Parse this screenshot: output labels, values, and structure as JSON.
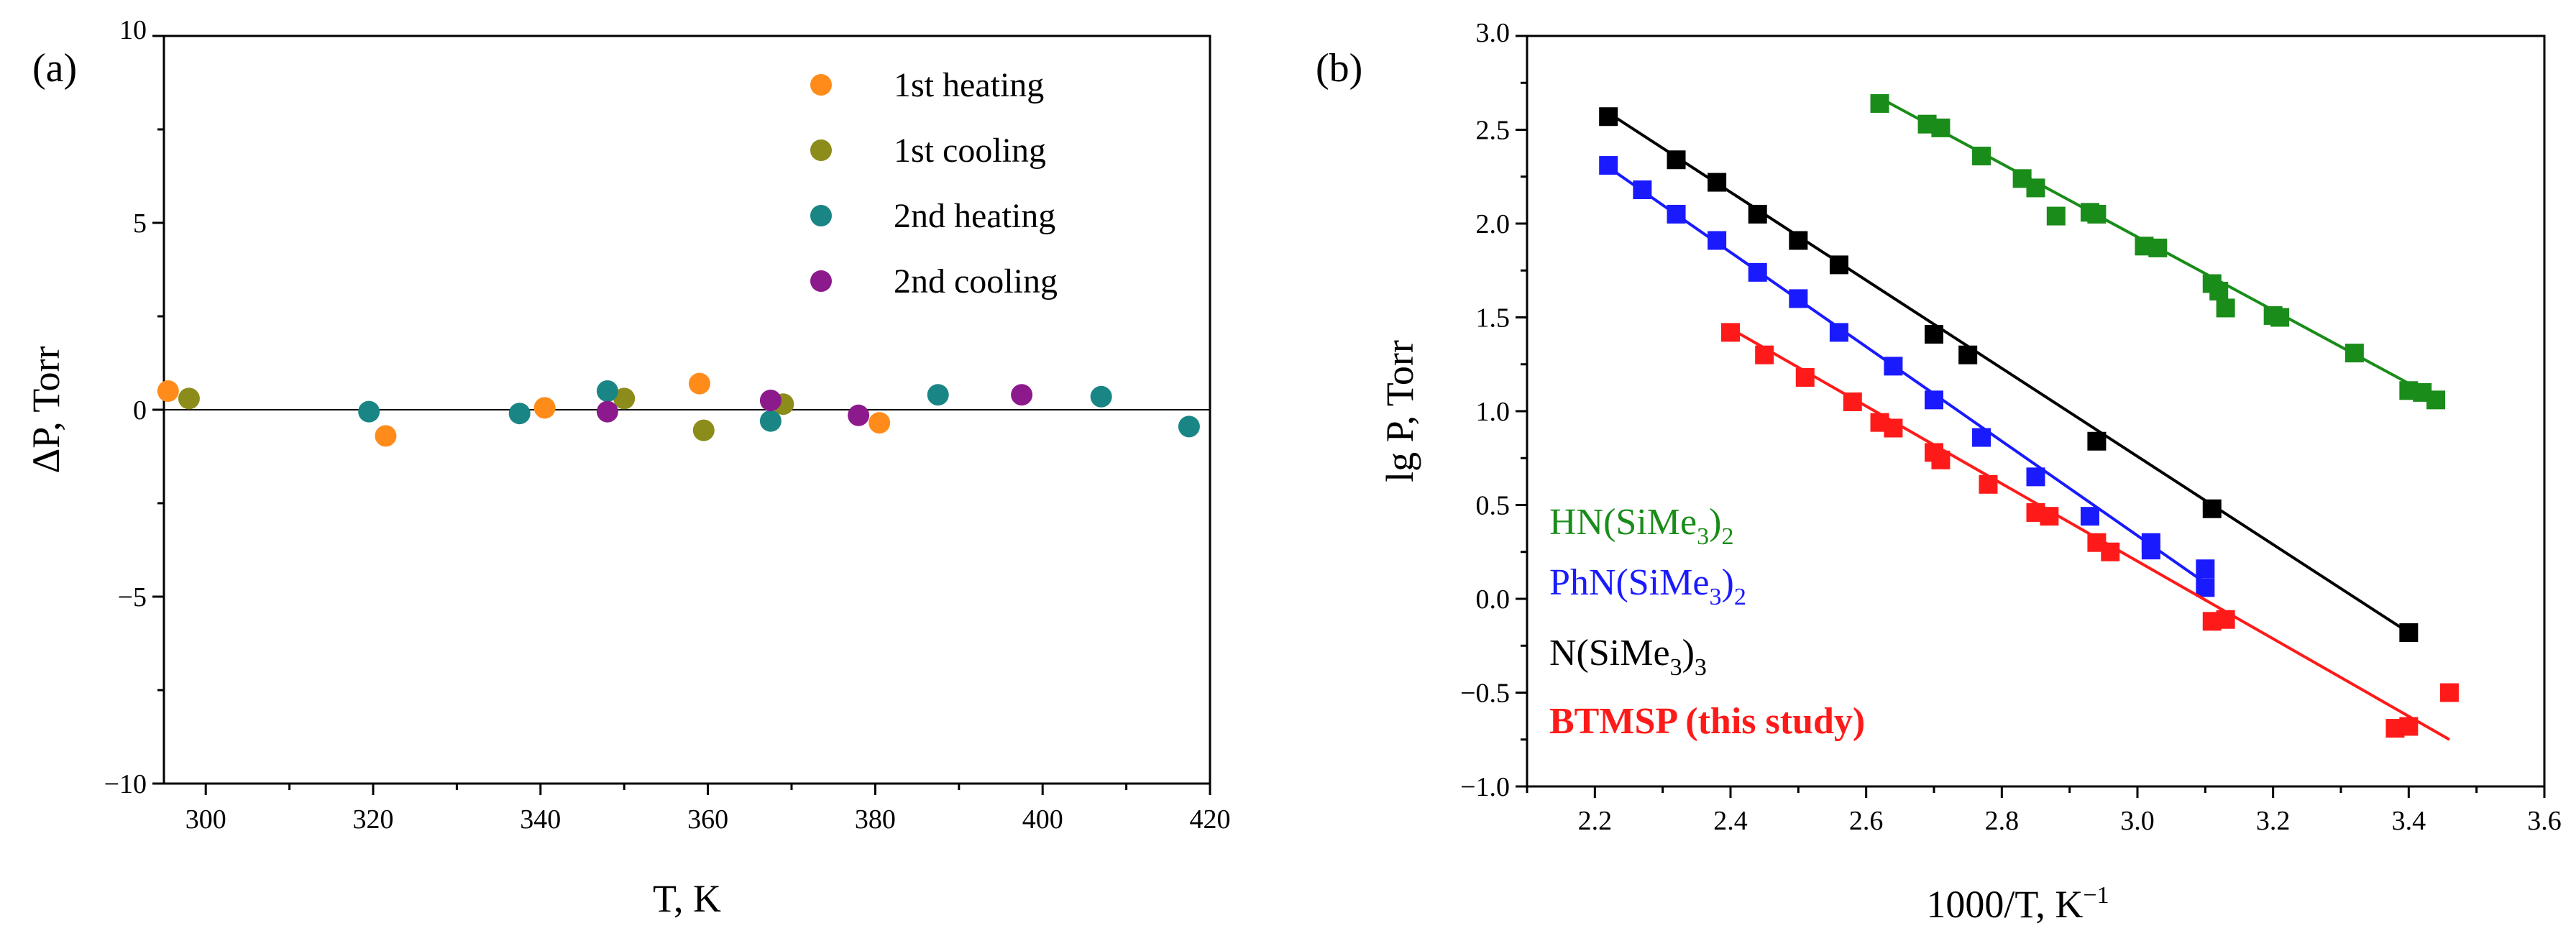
{
  "chart_data": [
    {
      "type": "scatter",
      "panel_label": "(a)",
      "xlabel": "T, K",
      "ylabel": "ΔP, Torr",
      "xlim": [
        295,
        420
      ],
      "ylim": [
        -10,
        10
      ],
      "xticks": [
        300,
        320,
        340,
        360,
        380,
        400,
        420
      ],
      "yticks": [
        -10,
        -5,
        0,
        5,
        10
      ],
      "xtick_labels": [
        "300",
        "320",
        "340",
        "360",
        "380",
        "400",
        "420"
      ],
      "ytick_labels": [
        "−10",
        "−5",
        "0",
        "5",
        "10"
      ],
      "zero_line": true,
      "legend_position": "top-right",
      "series": [
        {
          "name": "1st heating",
          "color": "#ff8c1a",
          "x": [
            295.5,
            321.5,
            340.5,
            359,
            380.5
          ],
          "y": [
            0.5,
            -0.7,
            0.05,
            0.7,
            -0.35
          ]
        },
        {
          "name": "1st cooling",
          "color": "#8c8c1a",
          "x": [
            298,
            350,
            359.5,
            369
          ],
          "y": [
            0.3,
            0.3,
            -0.55,
            0.15
          ]
        },
        {
          "name": "2nd heating",
          "color": "#1a8585",
          "x": [
            319.5,
            337.5,
            348,
            367.5,
            387.5,
            407,
            417.5
          ],
          "y": [
            -0.05,
            -0.1,
            0.5,
            -0.3,
            0.4,
            0.35,
            -0.45
          ]
        },
        {
          "name": "2nd cooling",
          "color": "#8c1a8c",
          "x": [
            348,
            367.5,
            378,
            397.5
          ],
          "y": [
            -0.05,
            0.25,
            -0.15,
            0.4
          ]
        }
      ]
    },
    {
      "type": "scatter",
      "panel_label": "(b)",
      "xlabel": "1000/T, K",
      "xlabel_sup": "−1",
      "ylabel": "lg P, Torr",
      "xlim": [
        2.1,
        3.6
      ],
      "ylim": [
        -1.0,
        3.0
      ],
      "xticks": [
        2.2,
        2.4,
        2.6,
        2.8,
        3.0,
        3.2,
        3.4,
        3.6
      ],
      "yticks": [
        -1.0,
        -0.5,
        0.0,
        0.5,
        1.0,
        1.5,
        2.0,
        2.5,
        3.0
      ],
      "xtick_labels": [
        "2.2",
        "2.4",
        "2.6",
        "2.8",
        "3.0",
        "3.2",
        "3.4",
        "3.6"
      ],
      "ytick_labels": [
        "−1.0",
        "−0.5",
        "0.0",
        "0.5",
        "1.0",
        "1.5",
        "2.0",
        "2.5",
        "3.0"
      ],
      "fit_lines": true,
      "series": [
        {
          "name": "HN(SiMe3)2",
          "label_main": "HN(SiMe",
          "label_sub1": "3",
          "label_mid": ")",
          "label_sub2": "2",
          "bold": false,
          "color": "#1a8c1a",
          "x": [
            2.62,
            2.69,
            2.71,
            2.77,
            2.83,
            2.85,
            2.88,
            2.93,
            2.94,
            3.01,
            3.03,
            3.11,
            3.12,
            3.13,
            3.2,
            3.21,
            3.32,
            3.4,
            3.42,
            3.44
          ],
          "y": [
            2.64,
            2.53,
            2.51,
            2.36,
            2.24,
            2.19,
            2.04,
            2.06,
            2.05,
            1.88,
            1.87,
            1.68,
            1.64,
            1.55,
            1.51,
            1.5,
            1.31,
            1.11,
            1.1,
            1.06
          ],
          "fit": {
            "x": [
              2.62,
              3.44
            ],
            "y": [
              2.67,
              1.07
            ]
          }
        },
        {
          "name": "PhN(SiMe3)2",
          "label_main": "PhN(SiMe",
          "label_sub1": "3",
          "label_mid": ")",
          "label_sub2": "2",
          "bold": false,
          "color": "#1a1aff",
          "x": [
            2.22,
            2.27,
            2.32,
            2.38,
            2.44,
            2.5,
            2.56,
            2.64,
            2.7,
            2.77,
            2.85,
            2.93,
            3.02,
            3.02,
            3.1,
            3.1
          ],
          "y": [
            2.31,
            2.18,
            2.05,
            1.91,
            1.74,
            1.6,
            1.42,
            1.24,
            1.06,
            0.86,
            0.65,
            0.44,
            0.3,
            0.26,
            0.16,
            0.06
          ],
          "fit": {
            "x": [
              2.22,
              3.11
            ],
            "y": [
              2.3,
              0.06
            ]
          }
        },
        {
          "name": "N(SiMe3)3",
          "label_main": "N(SiMe",
          "label_sub1": "3",
          "label_mid": ")",
          "label_sub2": "3",
          "bold": false,
          "color": "#000000",
          "x": [
            2.22,
            2.32,
            2.38,
            2.44,
            2.5,
            2.56,
            2.7,
            2.75,
            2.94,
            3.11,
            3.4
          ],
          "y": [
            2.57,
            2.34,
            2.22,
            2.05,
            1.91,
            1.78,
            1.41,
            1.3,
            0.84,
            0.48,
            -0.18
          ],
          "fit": {
            "x": [
              2.22,
              3.4
            ],
            "y": [
              2.59,
              -0.18
            ]
          }
        },
        {
          "name": "BTMSP (this study)",
          "label_main": "BTMSP (this study)",
          "label_sub1": "",
          "label_mid": "",
          "label_sub2": "",
          "bold": true,
          "color": "#ff1a1a",
          "x": [
            2.4,
            2.45,
            2.51,
            2.58,
            2.62,
            2.64,
            2.7,
            2.71,
            2.78,
            2.85,
            2.87,
            2.94,
            2.96,
            3.11,
            3.13,
            3.38,
            3.4,
            3.46
          ],
          "y": [
            1.42,
            1.3,
            1.18,
            1.05,
            0.94,
            0.91,
            0.78,
            0.74,
            0.61,
            0.46,
            0.44,
            0.3,
            0.25,
            -0.12,
            -0.11,
            -0.69,
            -0.68,
            -0.5
          ],
          "fit": {
            "x": [
              2.4,
              3.46
            ],
            "y": [
              1.44,
              -0.75
            ]
          }
        }
      ]
    }
  ]
}
